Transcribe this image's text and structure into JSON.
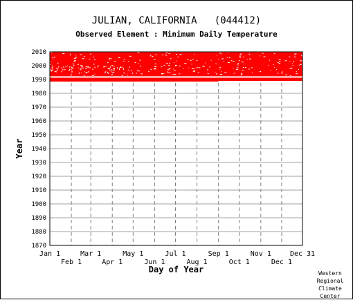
{
  "chart_data": {
    "type": "heatmap",
    "title": "JULIAN, CALIFORNIA   (044412)",
    "subtitle": "Observed Element : Minimum Daily Temperature",
    "xlabel": "Day of Year",
    "ylabel": "Year",
    "ylim": [
      1870,
      2010
    ],
    "yticks": [
      2010,
      2000,
      1990,
      1980,
      1970,
      1960,
      1950,
      1940,
      1930,
      1920,
      1910,
      1900,
      1890,
      1880,
      1870
    ],
    "xlim": [
      1,
      365
    ],
    "xticks_top": [
      {
        "label": "Jan 1",
        "day": 1
      },
      {
        "label": "Mar 1",
        "day": 60
      },
      {
        "label": "May 1",
        "day": 121
      },
      {
        "label": "Jul 1",
        "day": 182
      },
      {
        "label": "Sep 1",
        "day": 244
      },
      {
        "label": "Nov 1",
        "day": 305
      },
      {
        "label": "Dec 31",
        "day": 365
      }
    ],
    "xticks_bottom": [
      {
        "label": "Feb 1",
        "day": 32
      },
      {
        "label": "Apr 1",
        "day": 91
      },
      {
        "label": "Jun 1",
        "day": 152
      },
      {
        "label": "Aug 1",
        "day": 213
      },
      {
        "label": "Oct 1",
        "day": 274
      },
      {
        "label": "Dec 1",
        "day": 335
      }
    ],
    "grid": true,
    "data_color": "#ff0000",
    "observed_periods": [
      {
        "start_year": 1989,
        "end_year": 2010,
        "start_day": 1,
        "end_day": 365,
        "status": "observed"
      },
      {
        "start_year": 1988.5,
        "end_year": 1989,
        "start_day": 1,
        "end_day": 244,
        "status": "observed"
      }
    ],
    "missing_periods": [
      {
        "start_year": 1991.3,
        "end_year": 1992.3,
        "start_day": 1,
        "end_day": 365,
        "status": "missing"
      }
    ]
  },
  "credit": [
    "Western",
    "Regional",
    "Climate",
    "Center"
  ]
}
